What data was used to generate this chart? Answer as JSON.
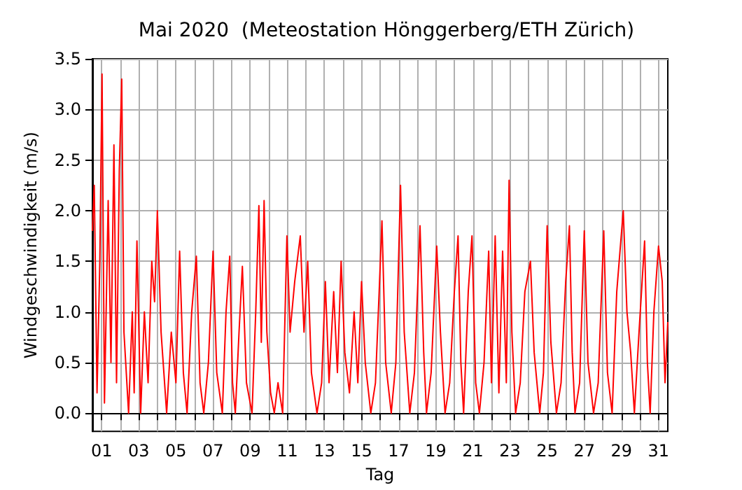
{
  "chart_data": {
    "type": "line",
    "title": "Mai 2020  (Meteostation Hönggerberg/ETH Zürich)",
    "xlabel": "Tag",
    "ylabel": "Windgeschwindigkeit (m/s)",
    "x": [
      0.5,
      0.6,
      0.75,
      0.9,
      1.02,
      1.15,
      1.35,
      1.5,
      1.66,
      1.8,
      1.95,
      2.08,
      2.2,
      2.45,
      2.65,
      2.75,
      2.9,
      3.1,
      3.3,
      3.5,
      3.7,
      3.85,
      4.0,
      4.2,
      4.5,
      4.75,
      5.0,
      5.2,
      5.4,
      5.6,
      5.85,
      6.1,
      6.3,
      6.5,
      6.75,
      7.0,
      7.2,
      7.5,
      7.7,
      7.9,
      8.05,
      8.2,
      8.4,
      8.58,
      8.8,
      9.1,
      9.3,
      9.47,
      9.6,
      9.75,
      9.9,
      10.1,
      10.3,
      10.5,
      10.75,
      10.98,
      11.15,
      11.4,
      11.7,
      11.9,
      12.1,
      12.3,
      12.6,
      12.85,
      13.05,
      13.25,
      13.5,
      13.7,
      13.9,
      14.1,
      14.35,
      14.6,
      14.8,
      15.0,
      15.2,
      15.5,
      15.75,
      15.95,
      16.1,
      16.3,
      16.6,
      16.85,
      17.1,
      17.3,
      17.6,
      17.85,
      18.15,
      18.35,
      18.5,
      18.75,
      19.05,
      19.25,
      19.5,
      19.75,
      20.0,
      20.2,
      20.35,
      20.5,
      20.75,
      20.95,
      21.15,
      21.35,
      21.6,
      21.85,
      22.0,
      22.2,
      22.4,
      22.6,
      22.8,
      22.95,
      23.1,
      23.3,
      23.55,
      23.8,
      24.1,
      24.3,
      24.6,
      24.8,
      25.0,
      25.2,
      25.5,
      25.75,
      26.0,
      26.2,
      26.35,
      26.5,
      26.75,
      27.0,
      27.2,
      27.5,
      27.75,
      28.05,
      28.25,
      28.5,
      28.75,
      29.1,
      29.3,
      29.5,
      29.7,
      29.95,
      30.25,
      30.4,
      30.55,
      30.75,
      31.0,
      31.2,
      31.35,
      31.5
    ],
    "series": [
      {
        "color": "#ff0000",
        "values": [
          1.8,
          2.25,
          0.2,
          1.5,
          3.35,
          0.1,
          2.1,
          0.5,
          2.65,
          0.3,
          2.4,
          3.3,
          0.8,
          0.0,
          1.0,
          0.2,
          1.7,
          0.0,
          1.0,
          0.3,
          1.5,
          1.1,
          2.0,
          0.8,
          0.0,
          0.8,
          0.3,
          1.6,
          0.4,
          0.0,
          1.0,
          1.55,
          0.3,
          0.0,
          0.5,
          1.6,
          0.4,
          0.0,
          1.0,
          1.55,
          0.3,
          0.0,
          0.8,
          1.45,
          0.3,
          0.0,
          1.0,
          2.05,
          0.7,
          2.1,
          0.8,
          0.2,
          0.0,
          0.3,
          0.0,
          1.75,
          0.8,
          1.3,
          1.75,
          0.8,
          1.5,
          0.4,
          0.0,
          0.3,
          1.3,
          0.3,
          1.2,
          0.4,
          1.5,
          0.6,
          0.2,
          1.0,
          0.3,
          1.3,
          0.5,
          0.0,
          0.3,
          1.2,
          1.9,
          0.5,
          0.0,
          0.5,
          2.25,
          0.8,
          0.0,
          0.4,
          1.85,
          0.6,
          0.0,
          0.4,
          1.65,
          0.8,
          0.0,
          0.3,
          1.2,
          1.75,
          0.5,
          0.0,
          1.2,
          1.75,
          0.3,
          0.0,
          0.5,
          1.6,
          0.3,
          1.75,
          0.2,
          1.6,
          0.3,
          2.3,
          0.8,
          0.0,
          0.3,
          1.2,
          1.5,
          0.6,
          0.0,
          0.4,
          1.85,
          0.7,
          0.0,
          0.3,
          1.3,
          1.85,
          0.6,
          0.0,
          0.3,
          1.8,
          0.5,
          0.0,
          0.3,
          1.8,
          0.4,
          0.0,
          1.2,
          2.0,
          1.0,
          0.6,
          0.0,
          0.8,
          1.7,
          0.5,
          0.0,
          1.0,
          1.65,
          1.3,
          0.3,
          0.9
        ]
      }
    ],
    "xlim": [
      0.5,
      31.5
    ],
    "xticks": [
      {
        "value": 1,
        "label": "01"
      },
      {
        "value": 2,
        "label": null
      },
      {
        "value": 3,
        "label": "03"
      },
      {
        "value": 4,
        "label": null
      },
      {
        "value": 5,
        "label": "05"
      },
      {
        "value": 6,
        "label": null
      },
      {
        "value": 7,
        "label": "07"
      },
      {
        "value": 8,
        "label": null
      },
      {
        "value": 9,
        "label": "09"
      },
      {
        "value": 10,
        "label": null
      },
      {
        "value": 11,
        "label": "11"
      },
      {
        "value": 12,
        "label": null
      },
      {
        "value": 13,
        "label": "13"
      },
      {
        "value": 14,
        "label": null
      },
      {
        "value": 15,
        "label": "15"
      },
      {
        "value": 16,
        "label": null
      },
      {
        "value": 17,
        "label": "17"
      },
      {
        "value": 18,
        "label": null
      },
      {
        "value": 19,
        "label": "19"
      },
      {
        "value": 20,
        "label": null
      },
      {
        "value": 21,
        "label": "21"
      },
      {
        "value": 22,
        "label": null
      },
      {
        "value": 23,
        "label": "23"
      },
      {
        "value": 24,
        "label": null
      },
      {
        "value": 25,
        "label": "25"
      },
      {
        "value": 26,
        "label": null
      },
      {
        "value": 27,
        "label": "27"
      },
      {
        "value": 28,
        "label": null
      },
      {
        "value": 29,
        "label": "29"
      },
      {
        "value": 30,
        "label": null
      },
      {
        "value": 31,
        "label": "31"
      }
    ],
    "ylim": [
      -0.18,
      3.5
    ],
    "yticks": [
      {
        "value": 0,
        "label": "0.0"
      },
      {
        "value": 0.5,
        "label": "0.5"
      },
      {
        "value": 1,
        "label": "1.0"
      },
      {
        "value": 1.5,
        "label": "1.5"
      },
      {
        "value": 2,
        "label": "2.0"
      },
      {
        "value": 2.5,
        "label": "2.5"
      },
      {
        "value": 3,
        "label": "3.0"
      },
      {
        "value": 3.5,
        "label": "3.5"
      }
    ],
    "grid": true
  }
}
